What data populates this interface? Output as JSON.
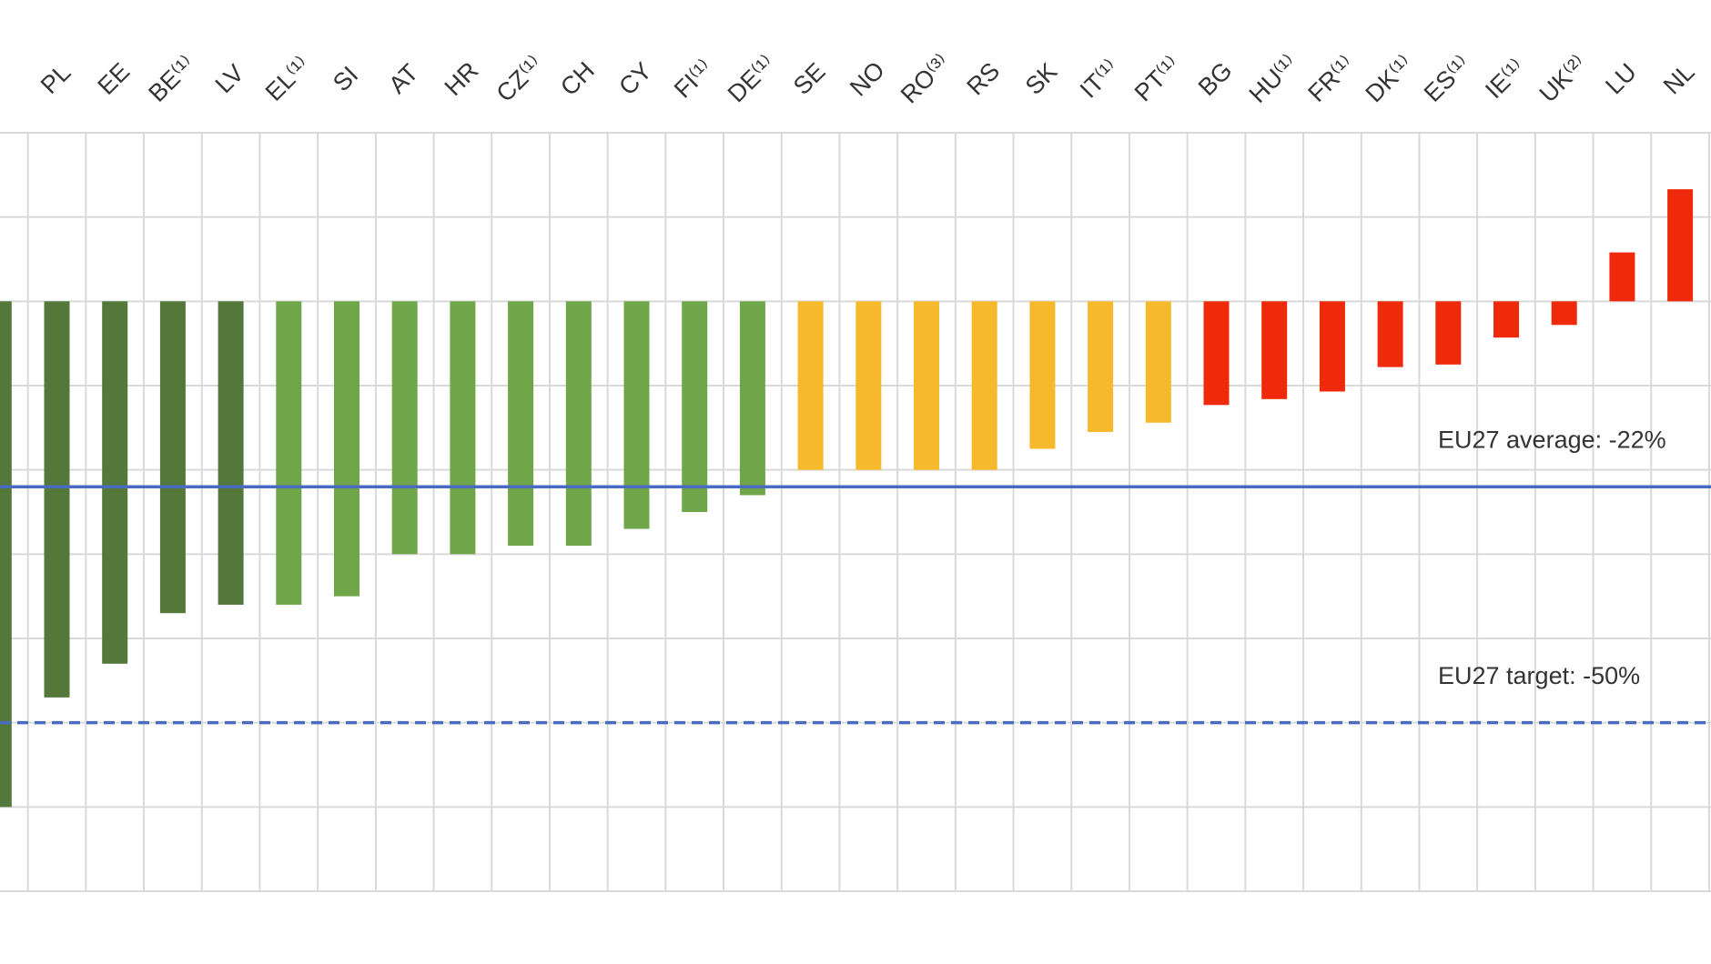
{
  "chart_data": {
    "type": "bar",
    "categories": [
      null,
      "PL",
      "EE",
      "BE⁽¹⁾",
      "LV",
      "EL⁽¹⁾",
      "SI",
      "AT",
      "HR",
      "CZ⁽¹⁾",
      "CH",
      "CY",
      "FI⁽¹⁾",
      "DE⁽¹⁾",
      "SE",
      "NO",
      "RO⁽³⁾",
      "RS",
      "SK",
      "IT⁽¹⁾",
      "PT⁽¹⁾",
      "BG",
      "HU⁽¹⁾",
      "FR⁽¹⁾",
      "DK⁽¹⁾",
      "ES⁽¹⁾",
      "IE⁽¹⁾",
      "UK⁽²⁾",
      "LU",
      "NL"
    ],
    "values": [
      -60,
      -47,
      -43,
      -37,
      -36,
      -36,
      -35,
      -30,
      -30,
      -29,
      -29,
      -27,
      -25,
      -23,
      -20,
      -20,
      -20,
      -20,
      -17.5,
      -15.5,
      -14.4,
      -12.3,
      -11.6,
      -10.7,
      -7.8,
      -7.5,
      -4.3,
      -2.8,
      5.8,
      13.3
    ],
    "colors": [
      "#53783a",
      "#53783a",
      "#53783a",
      "#53783a",
      "#53783a",
      "#6fa64a",
      "#6fa64a",
      "#6fa64a",
      "#6fa64a",
      "#6fa64a",
      "#6fa64a",
      "#6fa64a",
      "#6fa64a",
      "#6fa64a",
      "#f6b92b",
      "#f6b92b",
      "#f6b92b",
      "#f6b92b",
      "#f6b92b",
      "#f6b92b",
      "#f6b92b",
      "#ee2a0a",
      "#ee2a0a",
      "#ee2a0a",
      "#ee2a0a",
      "#ee2a0a",
      "#ee2a0a",
      "#ee2a0a",
      "#ee2a0a",
      "#ee2a0a"
    ],
    "ylim": [
      -70,
      20
    ],
    "yticks": [
      -70,
      -60,
      -50,
      -40,
      -30,
      -20,
      -10,
      0,
      10,
      20
    ],
    "grid": true,
    "reference_lines": [
      {
        "label": "EU27 average: -22%",
        "value": -22,
        "style": "solid",
        "color": "#4a6cc0"
      },
      {
        "label": "EU27 target: -50%",
        "value": -50,
        "style": "dashed",
        "color": "#4a6cc0"
      }
    ]
  }
}
